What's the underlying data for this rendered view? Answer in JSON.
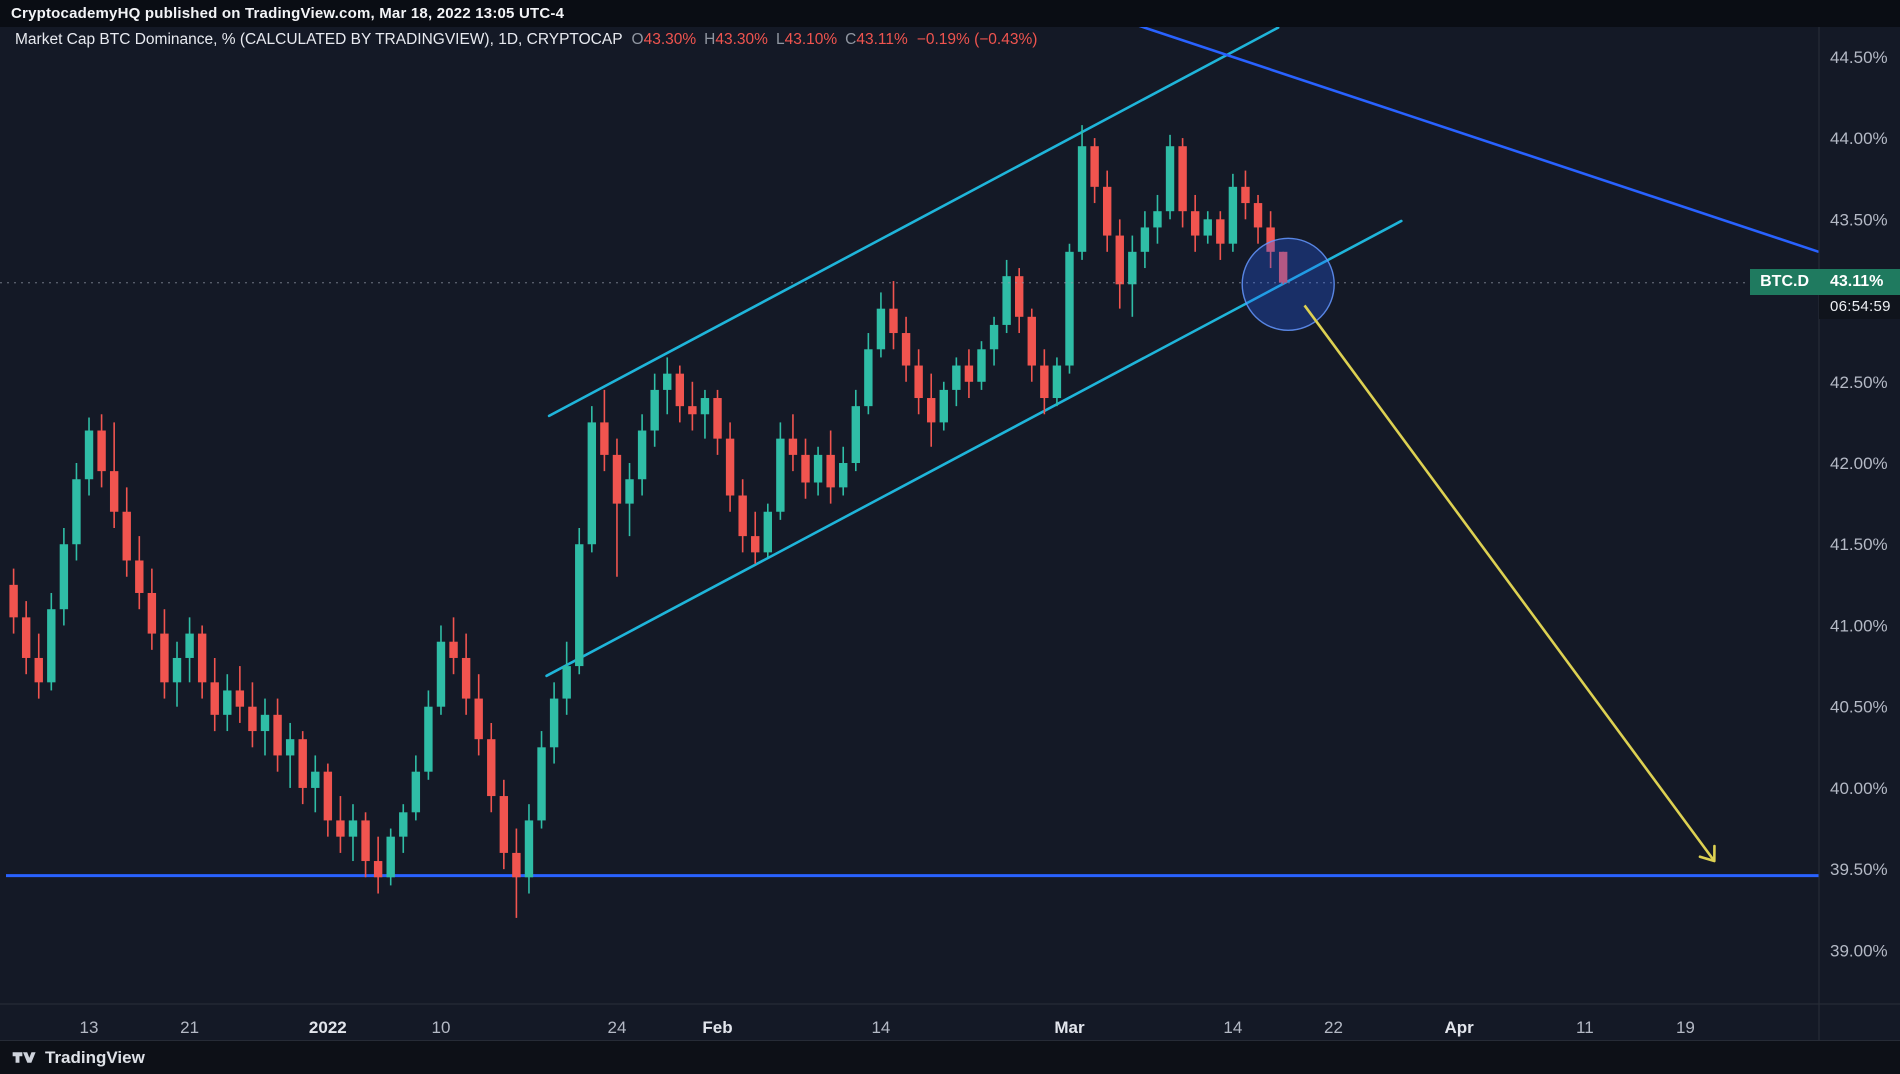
{
  "header": {
    "attribution": "CryptocademyHQ published on TradingView.com, Mar 18, 2022 13:05 UTC-4"
  },
  "legend": {
    "title": "Market Cap BTC Dominance, % (CALCULATED BY TRADINGVIEW), 1D, CRYPTOCAP",
    "values": [
      {
        "k": "O",
        "v": "43.30%"
      },
      {
        "k": "H",
        "v": "43.30%"
      },
      {
        "k": "L",
        "v": "43.10%"
      },
      {
        "k": "C",
        "v": "43.11%"
      }
    ],
    "change": "−0.19% (−0.43%)"
  },
  "price_label": {
    "symbol": "BTC.D",
    "value": "43.11%",
    "countdown": "06:54:59"
  },
  "footer": {
    "brand": "TradingView",
    "logo_icon": "tradingview-logo"
  },
  "colors": {
    "candle_up": "#2fbda6",
    "candle_down": "#f0544f",
    "channel_cyan": "#1fb5da",
    "drawing_blue": "#2962ff",
    "arrow_yellow": "#ddd152",
    "label_green": "#1f7a5f",
    "legend_red": "#f0544f"
  },
  "chart_data": {
    "type": "candlestick",
    "title": "Market Cap BTC Dominance, %",
    "interval": "1D",
    "source": "CRYPTOCAP",
    "last_price": 43.11,
    "ohlc_today": {
      "open": 43.3,
      "high": 43.3,
      "low": 43.1,
      "close": 43.11,
      "change_abs_pct": -0.19,
      "change_pct": -0.43
    },
    "ylim": [
      38.67,
      44.85
    ],
    "y_ticks": [
      {
        "v": 44.5,
        "label": "44.50%"
      },
      {
        "v": 44.0,
        "label": "44.00%"
      },
      {
        "v": 43.5,
        "label": "43.50%"
      },
      {
        "v": 43.0,
        "label": "43.00%"
      },
      {
        "v": 42.5,
        "label": "42.50%"
      },
      {
        "v": 42.0,
        "label": "42.00%"
      },
      {
        "v": 41.5,
        "label": "41.50%"
      },
      {
        "v": 41.0,
        "label": "41.00%"
      },
      {
        "v": 40.5,
        "label": "40.50%"
      },
      {
        "v": 40.0,
        "label": "40.00%"
      },
      {
        "v": 39.5,
        "label": "39.50%"
      },
      {
        "v": 39.0,
        "label": "39.00%"
      }
    ],
    "x_ticks": [
      {
        "label": "13",
        "day": 6,
        "major": false
      },
      {
        "label": "21",
        "day": 14,
        "major": false
      },
      {
        "label": "2022",
        "day": 25,
        "major": true
      },
      {
        "label": "10",
        "day": 34,
        "major": false
      },
      {
        "label": "24",
        "day": 48,
        "major": false
      },
      {
        "label": "Feb",
        "day": 56,
        "major": true
      },
      {
        "label": "14",
        "day": 69,
        "major": false
      },
      {
        "label": "Mar",
        "day": 84,
        "major": true
      },
      {
        "label": "14",
        "day": 97,
        "major": false
      },
      {
        "label": "22",
        "day": 105,
        "major": false
      },
      {
        "label": "Apr",
        "day": 115,
        "major": true
      },
      {
        "label": "11",
        "day": 125,
        "major": false
      },
      {
        "label": "19",
        "day": 133,
        "major": false
      }
    ],
    "candles": [
      [
        41.25,
        41.35,
        40.95,
        41.05
      ],
      [
        41.05,
        41.15,
        40.7,
        40.8
      ],
      [
        40.8,
        40.95,
        40.55,
        40.65
      ],
      [
        40.65,
        41.2,
        40.6,
        41.1
      ],
      [
        41.1,
        41.6,
        41.0,
        41.5
      ],
      [
        41.5,
        42.0,
        41.4,
        41.9
      ],
      [
        41.9,
        42.28,
        41.8,
        42.2
      ],
      [
        42.2,
        42.3,
        41.85,
        41.95
      ],
      [
        41.95,
        42.25,
        41.6,
        41.7
      ],
      [
        41.7,
        41.85,
        41.3,
        41.4
      ],
      [
        41.4,
        41.55,
        41.1,
        41.2
      ],
      [
        41.2,
        41.35,
        40.85,
        40.95
      ],
      [
        40.95,
        41.1,
        40.55,
        40.65
      ],
      [
        40.65,
        40.9,
        40.5,
        40.8
      ],
      [
        40.8,
        41.05,
        40.65,
        40.95
      ],
      [
        40.95,
        41.0,
        40.55,
        40.65
      ],
      [
        40.65,
        40.8,
        40.35,
        40.45
      ],
      [
        40.45,
        40.7,
        40.35,
        40.6
      ],
      [
        40.6,
        40.75,
        40.4,
        40.5
      ],
      [
        40.5,
        40.65,
        40.25,
        40.35
      ],
      [
        40.35,
        40.55,
        40.2,
        40.45
      ],
      [
        40.45,
        40.55,
        40.1,
        40.2
      ],
      [
        40.2,
        40.4,
        40.0,
        40.3
      ],
      [
        40.3,
        40.35,
        39.9,
        40.0
      ],
      [
        40.0,
        40.2,
        39.85,
        40.1
      ],
      [
        40.1,
        40.15,
        39.7,
        39.8
      ],
      [
        39.8,
        39.95,
        39.6,
        39.7
      ],
      [
        39.7,
        39.9,
        39.55,
        39.8
      ],
      [
        39.8,
        39.85,
        39.45,
        39.55
      ],
      [
        39.55,
        39.7,
        39.35,
        39.45
      ],
      [
        39.45,
        39.75,
        39.4,
        39.7
      ],
      [
        39.7,
        39.9,
        39.6,
        39.85
      ],
      [
        39.85,
        40.2,
        39.8,
        40.1
      ],
      [
        40.1,
        40.6,
        40.05,
        40.5
      ],
      [
        40.5,
        41.0,
        40.45,
        40.9
      ],
      [
        40.9,
        41.05,
        40.7,
        40.8
      ],
      [
        40.8,
        40.95,
        40.45,
        40.55
      ],
      [
        40.55,
        40.7,
        40.2,
        40.3
      ],
      [
        40.3,
        40.4,
        39.85,
        39.95
      ],
      [
        39.95,
        40.05,
        39.5,
        39.6
      ],
      [
        39.6,
        39.75,
        39.2,
        39.45
      ],
      [
        39.45,
        39.9,
        39.35,
        39.8
      ],
      [
        39.8,
        40.35,
        39.75,
        40.25
      ],
      [
        40.25,
        40.65,
        40.15,
        40.55
      ],
      [
        40.55,
        40.9,
        40.45,
        40.75
      ],
      [
        40.75,
        41.6,
        40.7,
        41.5
      ],
      [
        41.5,
        42.35,
        41.45,
        42.25
      ],
      [
        42.25,
        42.45,
        41.95,
        42.05
      ],
      [
        42.05,
        42.15,
        41.3,
        41.75
      ],
      [
        41.75,
        42.0,
        41.55,
        41.9
      ],
      [
        41.9,
        42.3,
        41.8,
        42.2
      ],
      [
        42.2,
        42.55,
        42.1,
        42.45
      ],
      [
        42.45,
        42.65,
        42.3,
        42.55
      ],
      [
        42.55,
        42.6,
        42.25,
        42.35
      ],
      [
        42.35,
        42.5,
        42.2,
        42.3
      ],
      [
        42.3,
        42.45,
        42.15,
        42.4
      ],
      [
        42.4,
        42.45,
        42.05,
        42.15
      ],
      [
        42.15,
        42.25,
        41.7,
        41.8
      ],
      [
        41.8,
        41.9,
        41.45,
        41.55
      ],
      [
        41.55,
        41.7,
        41.38,
        41.45
      ],
      [
        41.45,
        41.75,
        41.42,
        41.7
      ],
      [
        41.7,
        42.25,
        41.65,
        42.15
      ],
      [
        42.15,
        42.3,
        41.95,
        42.05
      ],
      [
        42.05,
        42.15,
        41.78,
        41.88
      ],
      [
        41.88,
        42.1,
        41.8,
        42.05
      ],
      [
        42.05,
        42.2,
        41.75,
        41.85
      ],
      [
        41.85,
        42.1,
        41.8,
        42.0
      ],
      [
        42.0,
        42.45,
        41.95,
        42.35
      ],
      [
        42.35,
        42.8,
        42.3,
        42.7
      ],
      [
        42.7,
        43.05,
        42.65,
        42.95
      ],
      [
        42.95,
        43.12,
        42.7,
        42.8
      ],
      [
        42.8,
        42.9,
        42.5,
        42.6
      ],
      [
        42.6,
        42.7,
        42.3,
        42.4
      ],
      [
        42.4,
        42.55,
        42.1,
        42.25
      ],
      [
        42.25,
        42.5,
        42.2,
        42.45
      ],
      [
        42.45,
        42.65,
        42.35,
        42.6
      ],
      [
        42.6,
        42.7,
        42.4,
        42.5
      ],
      [
        42.5,
        42.75,
        42.45,
        42.7
      ],
      [
        42.7,
        42.9,
        42.6,
        42.85
      ],
      [
        42.85,
        43.25,
        42.8,
        43.15
      ],
      [
        43.15,
        43.2,
        42.8,
        42.9
      ],
      [
        42.9,
        42.95,
        42.5,
        42.6
      ],
      [
        42.6,
        42.7,
        42.3,
        42.4
      ],
      [
        42.4,
        42.65,
        42.35,
        42.6
      ],
      [
        42.6,
        43.35,
        42.55,
        43.3
      ],
      [
        43.3,
        44.08,
        43.25,
        43.95
      ],
      [
        43.95,
        44.0,
        43.6,
        43.7
      ],
      [
        43.7,
        43.8,
        43.3,
        43.4
      ],
      [
        43.4,
        43.5,
        42.95,
        43.1
      ],
      [
        43.1,
        43.4,
        42.9,
        43.3
      ],
      [
        43.3,
        43.55,
        43.2,
        43.45
      ],
      [
        43.45,
        43.65,
        43.35,
        43.55
      ],
      [
        43.55,
        44.02,
        43.5,
        43.95
      ],
      [
        43.95,
        44.0,
        43.45,
        43.55
      ],
      [
        43.55,
        43.65,
        43.3,
        43.4
      ],
      [
        43.4,
        43.55,
        43.35,
        43.5
      ],
      [
        43.5,
        43.55,
        43.25,
        43.35
      ],
      [
        43.35,
        43.78,
        43.3,
        43.7
      ],
      [
        43.7,
        43.8,
        43.5,
        43.6
      ],
      [
        43.6,
        43.65,
        43.35,
        43.45
      ],
      [
        43.45,
        43.55,
        43.2,
        43.3
      ],
      [
        43.3,
        43.3,
        43.1,
        43.11
      ]
    ],
    "annotations": {
      "support": {
        "value": 39.46
      },
      "channel_lower": {
        "from": [
          42.4,
          40.69
        ],
        "to": [
          110.4,
          43.49
        ]
      },
      "channel_upper": {
        "from": [
          42.6,
          42.29
        ],
        "to": [
          100.6,
          44.68
        ]
      },
      "trendline_down": {
        "from": [
          89.2,
          44.7
        ],
        "to": [
          143.6,
          43.3
        ]
      },
      "circle": {
        "day": 101.4,
        "value": 43.1,
        "r": 46
      },
      "arrow": {
        "from": [
          102.7,
          42.97
        ],
        "to": [
          135.3,
          39.55
        ]
      }
    }
  }
}
